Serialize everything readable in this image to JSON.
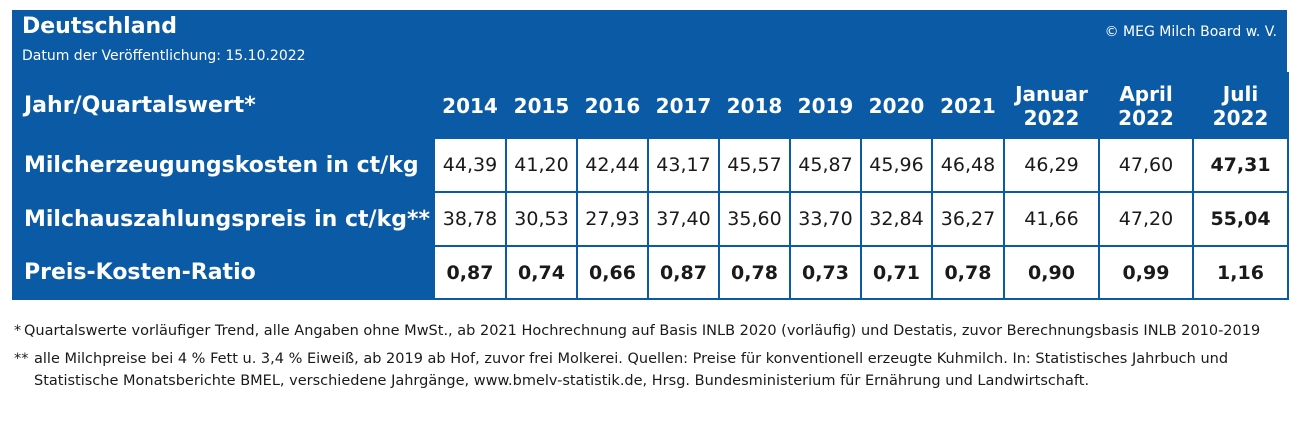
{
  "header": {
    "title": "Deutschland",
    "subtitle": "Datum der Veröffentlichung: 15.10.2022",
    "copyright": "© MEG Milch Board w. V."
  },
  "table": {
    "corner_label": "Jahr/Quartalswert*",
    "columns": [
      [
        "2014"
      ],
      [
        "2015"
      ],
      [
        "2016"
      ],
      [
        "2017"
      ],
      [
        "2018"
      ],
      [
        "2019"
      ],
      [
        "2020"
      ],
      [
        "2021"
      ],
      [
        "Januar",
        "2022"
      ],
      [
        "April",
        "2022"
      ],
      [
        "Juli",
        "2022"
      ]
    ],
    "rows": [
      {
        "label": "Milcherzeugungskosten in ct/kg",
        "values": [
          "44,39",
          "41,20",
          "42,44",
          "43,17",
          "45,57",
          "45,87",
          "45,96",
          "46,48",
          "46,29",
          "47,60",
          "47,31"
        ],
        "bold": [
          false,
          false,
          false,
          false,
          false,
          false,
          false,
          false,
          false,
          false,
          true
        ]
      },
      {
        "label": "Milchauszahlungspreis in ct/kg**",
        "values": [
          "38,78",
          "30,53",
          "27,93",
          "37,40",
          "35,60",
          "33,70",
          "32,84",
          "36,27",
          "41,66",
          "47,20",
          "55,04"
        ],
        "bold": [
          false,
          false,
          false,
          false,
          false,
          false,
          false,
          false,
          false,
          false,
          true
        ]
      },
      {
        "label": "Preis-Kosten-Ratio",
        "values": [
          "0,87",
          "0,74",
          "0,66",
          "0,87",
          "0,78",
          "0,73",
          "0,71",
          "0,78",
          "0,90",
          "0,99",
          "1,16"
        ],
        "bold": [
          true,
          true,
          true,
          true,
          true,
          true,
          true,
          true,
          true,
          true,
          true
        ]
      }
    ]
  },
  "footnotes": [
    {
      "mark": "*",
      "text": "Quartalswerte vorläufiger Trend, alle Angaben ohne MwSt., ab 2021 Hochrechnung auf Basis INLB 2020 (vorläufig) und Destatis, zuvor Berechnungsbasis INLB 2010-2019"
    },
    {
      "mark": "**",
      "text": "alle Milchpreise bei 4 % Fett u. 3,4 % Eiweiß, ab 2019 ab Hof, zuvor frei Molkerei. Quellen: Preise für konventionell erzeugte Kuhmilch. In: Statistisches Jahrbuch und Statistische Monatsberichte BMEL, verschiedene Jahrgänge, www.bmelv-statistik.de, Hrsg. Bundesministerium für Ernährung und Landwirtschaft."
    }
  ],
  "colors": {
    "brand_blue": "#0b5aa5",
    "cell_background": "#ffffff",
    "text": "#1a1a1a"
  }
}
